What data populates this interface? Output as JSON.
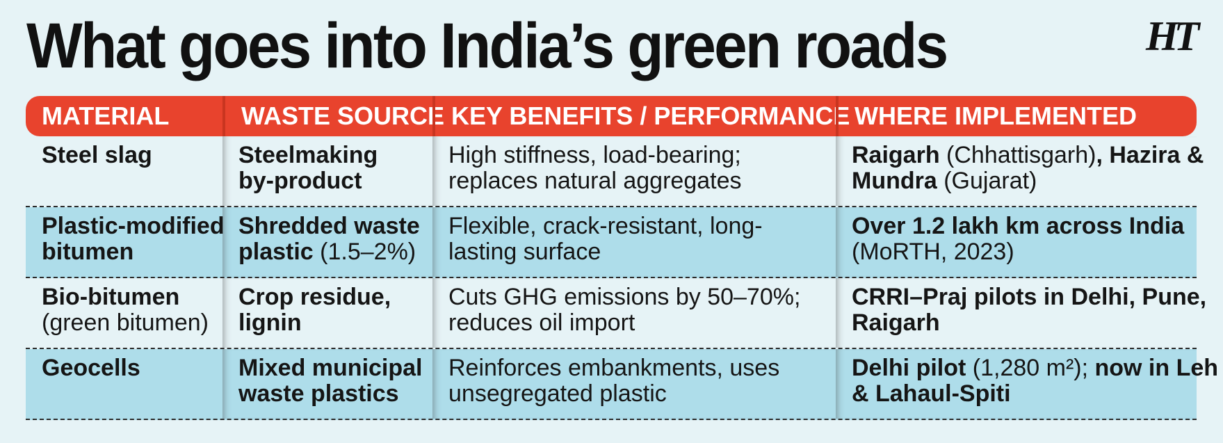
{
  "title": "What goes into India’s green roads",
  "logo_text": "HT",
  "colors": {
    "header": "#e8432d",
    "background": "#e6f3f6",
    "alt_row": "#aeddea",
    "text": "#151515"
  },
  "headers": [
    "MATERIAL",
    "WASTE SOURCE",
    "KEY BENEFITS / PERFORMANCE",
    "WHERE IMPLEMENTED"
  ],
  "rows": [
    {
      "material": {
        "line1": "Steel slag"
      },
      "source": {
        "line1": "Steelmaking",
        "line2": "by-product"
      },
      "benefits": {
        "line1": "High stiffness, load-bearing;",
        "line2": "replaces natural aggregates"
      },
      "where": {
        "l1a": "Raigarh",
        "l1b": " (Chhattisgarh)",
        "l1c": ", Hazira &",
        "l2a": "Mundra",
        "l2b": " (Gujarat)"
      }
    },
    {
      "material": {
        "line1": "Plastic-modified",
        "line2": "bitumen"
      },
      "source": {
        "line1": "Shredded waste",
        "line2a": "plastic",
        "line2b": " (1.5–2%)"
      },
      "benefits": {
        "line1": "Flexible, crack-resistant, long-",
        "line2": "lasting surface"
      },
      "where": {
        "line1": "Over 1.2 lakh km across India",
        "line2": "(MoRTH, 2023)"
      }
    },
    {
      "material": {
        "line1": "Bio-bitumen",
        "line2": "(green bitumen)"
      },
      "source": {
        "line1": "Crop residue,",
        "line2": "lignin"
      },
      "benefits": {
        "line1": "Cuts GHG emissions by 50–70%;",
        "line2": "reduces oil import"
      },
      "where": {
        "line1": "CRRI–Praj pilots in Delhi, Pune,",
        "line2": "Raigarh"
      }
    },
    {
      "material": {
        "line1": "Geocells"
      },
      "source": {
        "line1": "Mixed municipal",
        "line2": "waste plastics"
      },
      "benefits": {
        "line1": "Reinforces embankments, uses",
        "line2": "unsegregated plastic"
      },
      "where": {
        "l1a": "Delhi pilot",
        "l1b": " (1,280 m²); ",
        "l1c": "now in Leh",
        "line2": "& Lahaul-Spiti"
      }
    }
  ]
}
